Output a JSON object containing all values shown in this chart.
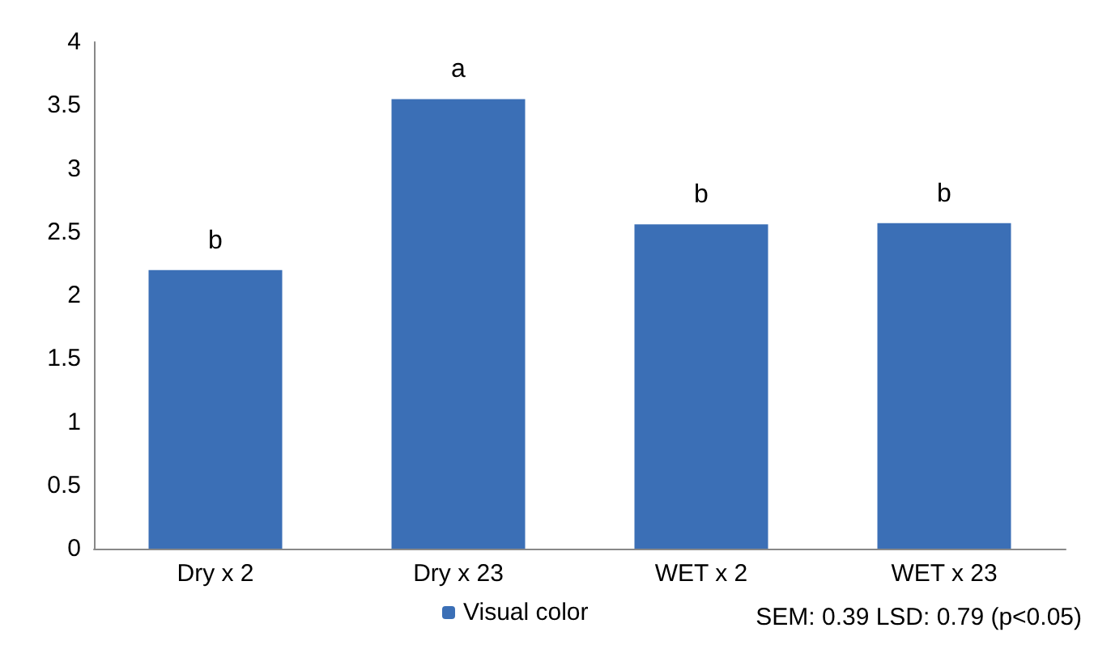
{
  "chart_data": {
    "type": "bar",
    "categories": [
      "Dry x 2",
      "Dry x 23",
      "WET x 2",
      "WET x 23"
    ],
    "series": [
      {
        "name": "Visual color",
        "color": "#3b6fb6",
        "values": [
          2.2,
          3.55,
          2.56,
          2.57
        ]
      }
    ],
    "ylim": [
      0,
      4
    ],
    "yticks": [
      0,
      0.5,
      1,
      1.5,
      2,
      2.5,
      3,
      3.5,
      4
    ],
    "grid": false,
    "legend": "bottom",
    "annotations": [
      {
        "text": "b",
        "x": "Dry x 2",
        "y": 2.2
      },
      {
        "text": "a",
        "x": "Dry x 23",
        "y": 3.55
      },
      {
        "text": "b",
        "x": "WET x 2",
        "y": 2.56
      },
      {
        "text": "b",
        "x": "WET x 23",
        "y": 2.57
      },
      "SEM: 0.39 LSD: 0.79 (p<0.05)"
    ]
  }
}
